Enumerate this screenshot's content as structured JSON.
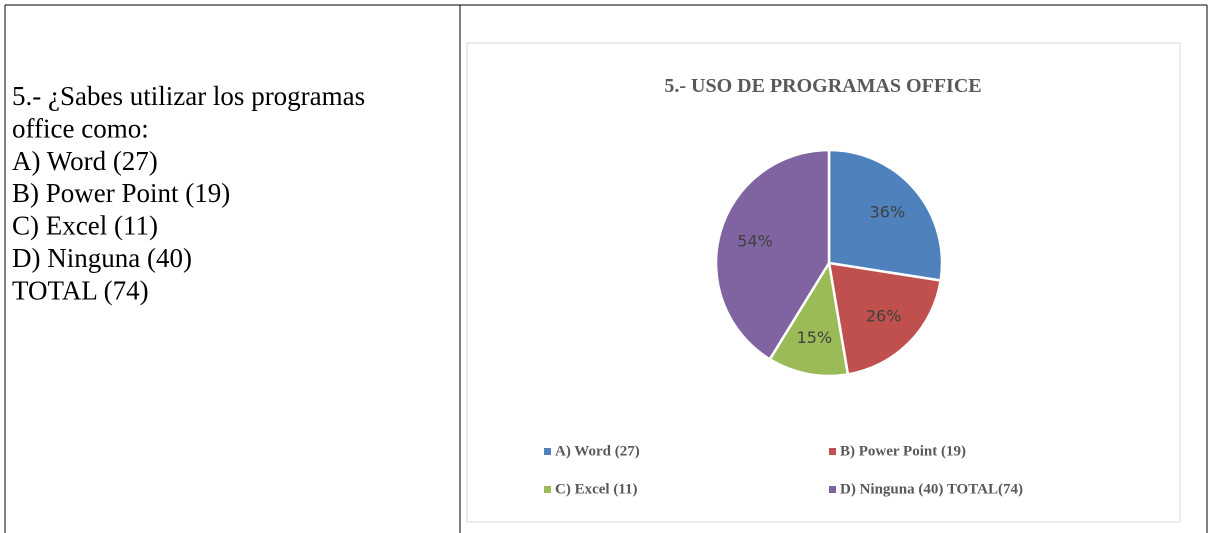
{
  "table": {
    "question_lines": [
      "5.- ¿Sabes utilizar los programas",
      "office como:",
      "A) Word (27)",
      "B) Power Point (19)",
      "C) Excel (11)",
      "D) Ninguna (40)",
      "TOTAL (74)"
    ]
  },
  "chart_data": {
    "type": "pie",
    "title": "5.- USO DE PROGRAMAS OFFICE",
    "categories": [
      "A) Word (27)",
      "B) Power  Point (19)",
      "C) Excel (11)",
      "D) Ninguna  (40)  TOTAL(74)"
    ],
    "values": [
      36,
      26,
      15,
      54
    ],
    "value_labels": [
      "36%",
      "26%",
      "15%",
      "54%"
    ],
    "colors": [
      "#4f81bd",
      "#c0504d",
      "#9bbb59",
      "#8064a2"
    ],
    "legend": "bottom"
  }
}
